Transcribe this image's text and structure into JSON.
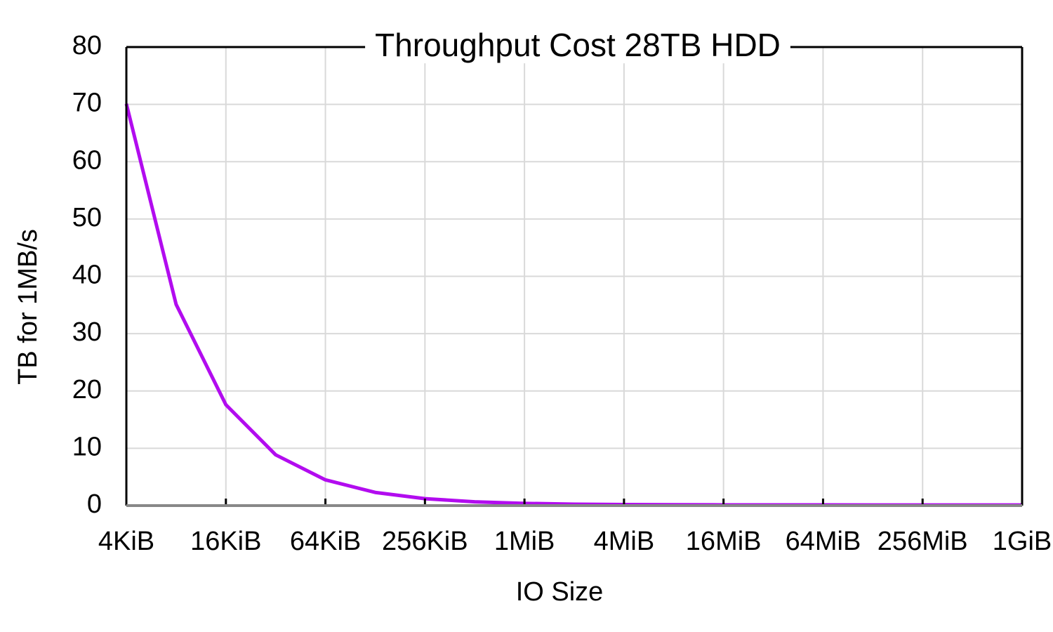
{
  "chart_data": {
    "type": "line",
    "title": "Throughput Cost 28TB HDD",
    "x_label": "IO Size",
    "y_label": "TB for 1MB/s",
    "x_scale": "log",
    "grid": true,
    "x": [
      4,
      8,
      16,
      32,
      64,
      128,
      256,
      512,
      1024,
      2048,
      4096,
      8192,
      16384,
      32768,
      65536,
      131072,
      262144,
      524288,
      1048576
    ],
    "series": [
      {
        "name": "28TB HDD",
        "color": "#b20cef",
        "values": [
          70.1,
          35.1,
          17.6,
          8.86,
          4.49,
          2.3,
          1.21,
          0.66,
          0.39,
          0.25,
          0.18,
          0.146,
          0.129,
          0.121,
          0.116,
          0.114,
          0.113,
          0.112,
          0.112
        ]
      }
    ],
    "xlim": [
      4,
      1048576
    ],
    "xticks": [
      {
        "value": 4,
        "label": "4KiB"
      },
      {
        "value": 16,
        "label": "16KiB"
      },
      {
        "value": 64,
        "label": "64KiB"
      },
      {
        "value": 256,
        "label": "256KiB"
      },
      {
        "value": 1024,
        "label": "1MiB"
      },
      {
        "value": 4096,
        "label": "4MiB"
      },
      {
        "value": 16384,
        "label": "16MiB"
      },
      {
        "value": 65536,
        "label": "64MiB"
      },
      {
        "value": 262144,
        "label": "256MiB"
      },
      {
        "value": 1048576,
        "label": "1GiB"
      }
    ],
    "ylim": [
      0,
      80
    ],
    "yticks": [
      0,
      10,
      20,
      30,
      40,
      50,
      60,
      70,
      80
    ]
  }
}
